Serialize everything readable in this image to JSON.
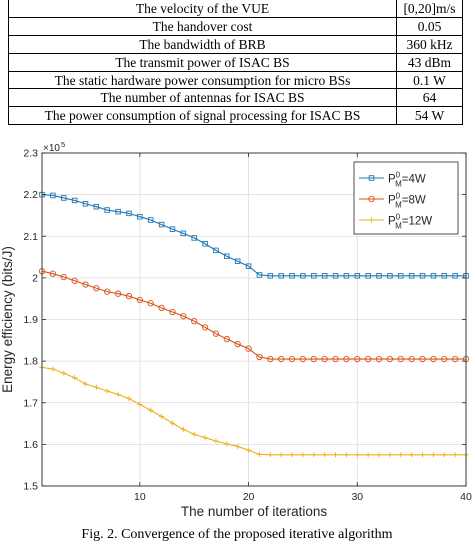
{
  "table": {
    "rows": [
      {
        "param": "The velocity of the VUE",
        "value": "[0,20]m/s"
      },
      {
        "param": "The handover cost",
        "value": "0.05"
      },
      {
        "param": "The bandwidth of BRB",
        "value": "360 kHz"
      },
      {
        "param": "The transmit power of ISAC BS",
        "value": "43 dBm"
      },
      {
        "param": "The static hardware power consumption for micro BSs",
        "value": "0.1 W"
      },
      {
        "param": "The number of antennas for ISAC BS",
        "value": "64"
      },
      {
        "param": "The power consumption of signal processing for ISAC BS",
        "value": "54 W"
      }
    ]
  },
  "figure": {
    "caption": "Fig. 2.  Convergence of the proposed iterative algorithm"
  },
  "chart_data": {
    "type": "line",
    "xlabel": "The number of iterations",
    "ylabel": "Energy efficiency (bits/J)",
    "y_exponent_label": "×10",
    "y_exponent_power": "5",
    "xlim": [
      1,
      40
    ],
    "ylim": [
      1.5,
      2.3
    ],
    "x_ticks": [
      10,
      20,
      30,
      40
    ],
    "y_ticks": [
      1.5,
      1.6,
      1.7,
      1.8,
      1.9,
      2.0,
      2.1,
      2.2,
      2.3
    ],
    "grid": true,
    "legend_position": "top-right",
    "x": [
      1,
      2,
      3,
      4,
      5,
      6,
      7,
      8,
      9,
      10,
      11,
      12,
      13,
      14,
      15,
      16,
      17,
      18,
      19,
      20,
      21,
      22,
      23,
      24,
      25,
      26,
      27,
      28,
      29,
      30,
      31,
      32,
      33,
      34,
      35,
      36,
      37,
      38,
      39,
      40
    ],
    "series": [
      {
        "name": "4W",
        "legend_base": "P",
        "legend_sup": "0",
        "legend_sub": "M",
        "color": "#1f77b4",
        "marker": "square",
        "values": [
          2.2,
          2.198,
          2.192,
          2.186,
          2.178,
          2.171,
          2.163,
          2.159,
          2.155,
          2.147,
          2.139,
          2.128,
          2.117,
          2.107,
          2.096,
          2.082,
          2.066,
          2.052,
          2.04,
          2.028,
          2.007,
          2.005,
          2.005,
          2.005,
          2.005,
          2.005,
          2.005,
          2.005,
          2.005,
          2.005,
          2.005,
          2.005,
          2.005,
          2.005,
          2.005,
          2.005,
          2.005,
          2.005,
          2.005,
          2.005
        ]
      },
      {
        "name": "8W",
        "legend_base": "P",
        "legend_sup": "0",
        "legend_sub": "M",
        "color": "#d9541a",
        "marker": "circle",
        "values": [
          2.016,
          2.01,
          2.002,
          1.993,
          1.984,
          1.975,
          1.967,
          1.962,
          1.956,
          1.947,
          1.939,
          1.928,
          1.918,
          1.908,
          1.896,
          1.881,
          1.866,
          1.853,
          1.841,
          1.83,
          1.81,
          1.805,
          1.805,
          1.805,
          1.805,
          1.805,
          1.805,
          1.805,
          1.805,
          1.805,
          1.805,
          1.805,
          1.805,
          1.805,
          1.805,
          1.805,
          1.805,
          1.805,
          1.805,
          1.805
        ]
      },
      {
        "name": "12W",
        "legend_base": "P",
        "legend_sup": "0",
        "legend_sub": "M",
        "color": "#edb120",
        "marker": "plus",
        "values": [
          1.785,
          1.781,
          1.771,
          1.76,
          1.745,
          1.737,
          1.728,
          1.72,
          1.71,
          1.696,
          1.682,
          1.667,
          1.651,
          1.636,
          1.624,
          1.616,
          1.608,
          1.601,
          1.595,
          1.586,
          1.576,
          1.575,
          1.575,
          1.575,
          1.575,
          1.575,
          1.575,
          1.575,
          1.575,
          1.575,
          1.575,
          1.575,
          1.575,
          1.575,
          1.575,
          1.575,
          1.575,
          1.575,
          1.575,
          1.575
        ]
      }
    ]
  }
}
